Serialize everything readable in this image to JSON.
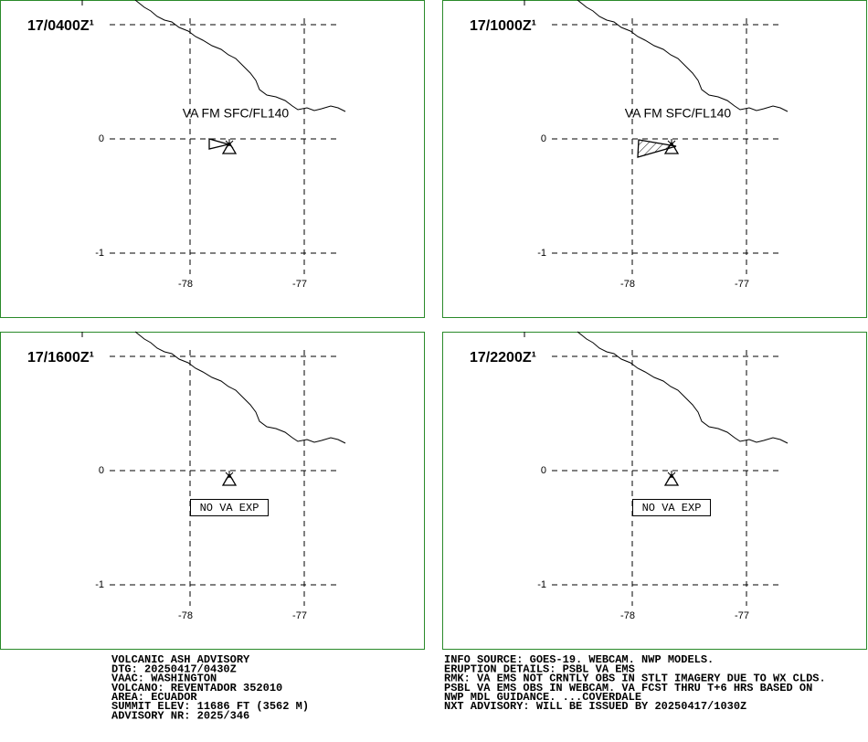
{
  "panels": [
    {
      "time": "17/0400Z¹",
      "annotation": "VA FM SFC/FL140",
      "lat_labels": [
        "0",
        "-1"
      ],
      "lon_labels": [
        "-78",
        "-77"
      ]
    },
    {
      "time": "17/1000Z¹",
      "annotation": "VA FM SFC/FL140",
      "lat_labels": [
        "0",
        "-1"
      ],
      "lon_labels": [
        "-78",
        "-77"
      ]
    },
    {
      "time": "17/1600Z¹",
      "annotation": "NO VA EXP",
      "lat_labels": [
        "0",
        "-1"
      ],
      "lon_labels": [
        "-78",
        "-77"
      ]
    },
    {
      "time": "17/2200Z¹",
      "annotation": "NO VA EXP",
      "lat_labels": [
        "0",
        "-1"
      ],
      "lon_labels": [
        "-78",
        "-77"
      ]
    }
  ],
  "footer": {
    "left": [
      "VOLCANIC ASH ADVISORY",
      "DTG: 20250417/0430Z",
      "VAAC: WASHINGTON",
      "VOLCANO: REVENTADOR 352010",
      "AREA: ECUADOR",
      "SUMMIT ELEV: 11686 FT (3562 M)",
      "ADVISORY NR: 2025/346"
    ],
    "right": [
      "INFO SOURCE: GOES-19. WEBCAM. NWP MODELS.",
      "ERUPTION DETAILS: PSBL VA EMS",
      "RMK: VA EMS NOT CRNTLY OBS IN STLT IMAGERY DUE TO WX CLDS.",
      "PSBL VA EMS OBS IN WEBCAM. VA FCST THRU T+6 HRS BASED ON",
      "NWP MDL GUIDANCE. ...COVERDALE",
      "NXT ADVISORY: WILL BE ISSUED BY 20250417/1030Z"
    ]
  }
}
